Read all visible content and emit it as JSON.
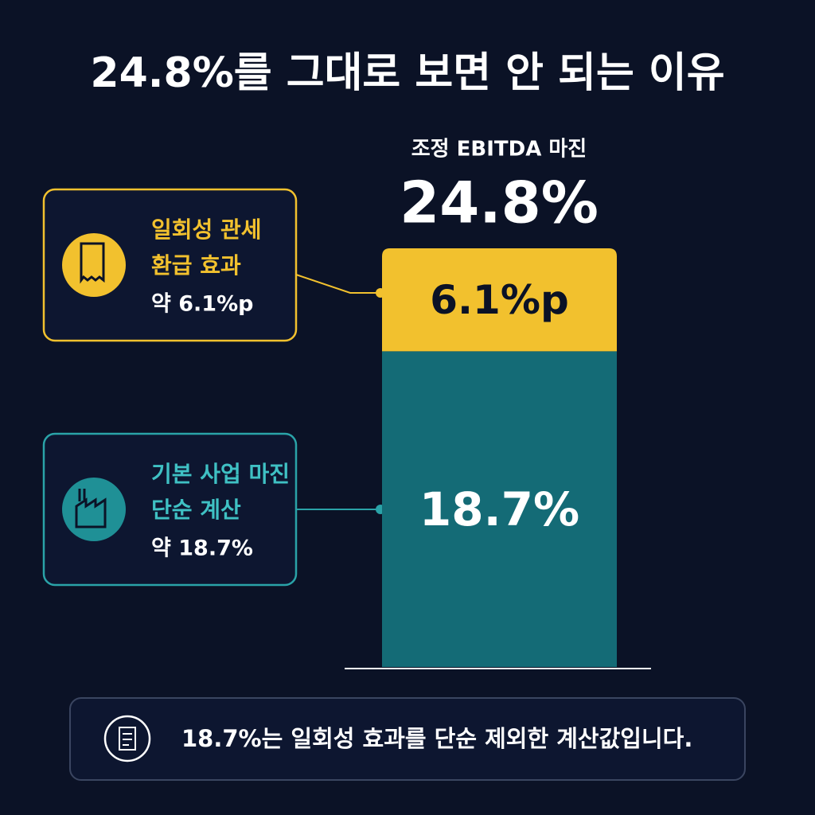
{
  "chart_data": {
    "type": "stacked_bar",
    "title": "24.8%를 그대로 보면 안 되는 이유",
    "subtitle": "조정 EBITDA 마진",
    "total_label": "24.8%",
    "series": [
      {
        "label_lines": [
          "기본 사업 마진",
          "단순 계산"
        ],
        "approx_label": "약 18.7%",
        "color": "#146b76",
        "values": [
          18.7
        ],
        "value_labels": [
          "18.7%"
        ]
      },
      {
        "label_lines": [
          "일회성 관세",
          "환급 효과"
        ],
        "approx_label": "약 6.1%p",
        "color": "#f2c12e",
        "values": [
          6.1
        ],
        "value_labels": [
          "6.1%p"
        ]
      }
    ],
    "note": "18.7%는 일회성 효과를 단순 제외한 계산값입니다."
  }
}
